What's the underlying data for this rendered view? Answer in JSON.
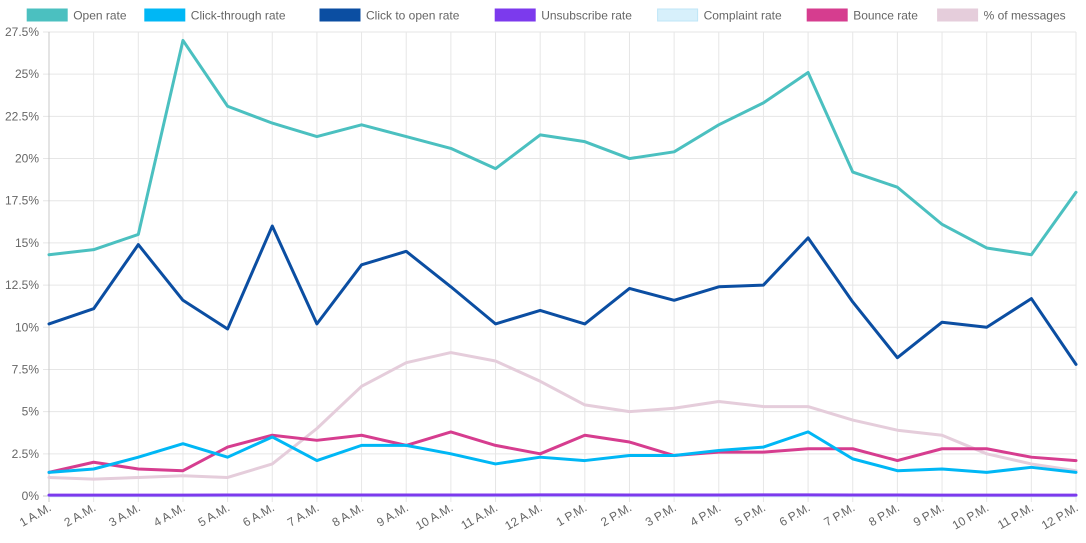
{
  "chart_data": {
    "type": "line",
    "title": "",
    "xlabel": "",
    "ylabel": "",
    "ylim": [
      0,
      27.5
    ],
    "y_ticks": [
      0,
      2.5,
      5,
      7.5,
      10,
      12.5,
      15,
      17.5,
      20,
      22.5,
      25,
      27.5
    ],
    "y_tick_labels": [
      "0%",
      "2.5%",
      "5%",
      "7.5%",
      "10%",
      "12.5%",
      "15%",
      "17.5%",
      "20%",
      "22.5%",
      "25%",
      "27.5%"
    ],
    "grid": true,
    "legend_position": "top",
    "categories": [
      "1 A.M.",
      "2 A.M.",
      "3 A.M.",
      "4 A.M.",
      "5 A.M.",
      "6 A.M.",
      "7 A.M.",
      "8 A.M.",
      "9 A.M.",
      "10 A.M.",
      "11 A.M.",
      "12 A.M.",
      "1 P.M.",
      "2 P.M.",
      "3 P.M.",
      "4 P.M.",
      "5 P.M.",
      "6 P.M.",
      "7 P.M.",
      "8 P.M.",
      "9 P.M.",
      "10 P.M.",
      "11 P.M.",
      "12 P.M."
    ],
    "series": [
      {
        "name": "Open rate",
        "color": "#4bc0c0",
        "values": [
          14.3,
          14.6,
          15.5,
          27.0,
          23.1,
          22.1,
          21.3,
          22.0,
          21.3,
          20.6,
          19.4,
          21.4,
          21.0,
          20.0,
          20.4,
          22.0,
          23.3,
          25.1,
          19.2,
          18.3,
          16.1,
          14.7,
          14.3,
          18.0
        ]
      },
      {
        "name": "Click-through rate",
        "color": "#00b7f5",
        "values": [
          1.4,
          1.6,
          2.3,
          3.1,
          2.3,
          3.5,
          2.1,
          3.0,
          3.0,
          2.5,
          1.9,
          2.3,
          2.1,
          2.4,
          2.4,
          2.7,
          2.9,
          3.8,
          2.2,
          1.5,
          1.6,
          1.4,
          1.7,
          1.4
        ]
      },
      {
        "name": "Click to open rate",
        "color": "#0b4ea2",
        "values": [
          10.2,
          11.1,
          14.9,
          11.6,
          9.9,
          16.0,
          10.2,
          13.7,
          14.5,
          12.4,
          10.2,
          11.0,
          10.2,
          12.3,
          11.6,
          12.4,
          12.5,
          15.3,
          11.5,
          8.2,
          10.3,
          10.0,
          11.7,
          7.8
        ]
      },
      {
        "name": "Unsubscribe rate",
        "color": "#7c3aed",
        "values": [
          0.05,
          0.05,
          0.05,
          0.05,
          0.06,
          0.06,
          0.06,
          0.06,
          0.06,
          0.06,
          0.06,
          0.07,
          0.07,
          0.06,
          0.06,
          0.06,
          0.07,
          0.07,
          0.06,
          0.06,
          0.05,
          0.05,
          0.05,
          0.05
        ]
      },
      {
        "name": "Complaint rate",
        "color": "#d7f0fb",
        "values": [
          0.01,
          0.01,
          0.01,
          0.01,
          0.01,
          0.01,
          0.01,
          0.01,
          0.01,
          0.01,
          0.01,
          0.01,
          0.01,
          0.01,
          0.01,
          0.01,
          0.01,
          0.01,
          0.01,
          0.01,
          0.01,
          0.01,
          0.01,
          0.01
        ]
      },
      {
        "name": "Bounce rate",
        "color": "#d63d8f",
        "values": [
          1.4,
          2.0,
          1.6,
          1.5,
          2.9,
          3.6,
          3.3,
          3.6,
          3.0,
          3.8,
          3.0,
          2.5,
          3.6,
          3.2,
          2.4,
          2.6,
          2.6,
          2.8,
          2.8,
          2.1,
          2.8,
          2.8,
          2.3,
          2.1
        ]
      },
      {
        "name": "% of messages",
        "color": "#e5cddb",
        "values": [
          1.1,
          1.0,
          1.1,
          1.2,
          1.1,
          1.9,
          4.0,
          6.5,
          7.9,
          8.5,
          8.0,
          6.8,
          5.4,
          5.0,
          5.2,
          5.6,
          5.3,
          5.3,
          4.5,
          3.9,
          3.6,
          2.5,
          1.9,
          1.5
        ]
      }
    ]
  }
}
